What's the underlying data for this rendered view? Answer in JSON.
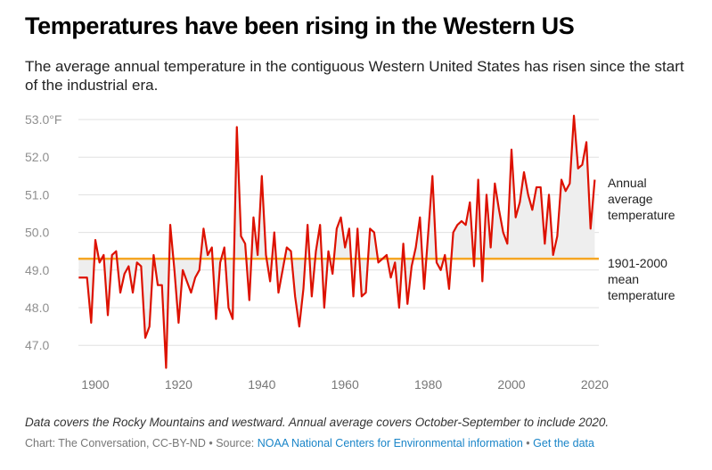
{
  "title": "Temperatures have been rising in the Western US",
  "subtitle": "The average annual temperature in the contiguous Western United States has risen since the start of the industrial era.",
  "note": "Data covers the Rocky Mountains and westward. Annual average covers October-September to include 2020.",
  "credit": {
    "prefix": "Chart: The Conversation, CC-BY-ND",
    "separator": " • ",
    "source_label": "Source: ",
    "source_link": "NOAA National Centers for Environmental information",
    "get_data": "Get the data"
  },
  "colors": {
    "line": "#dd1100",
    "mean": "#f5a623",
    "fill": "#eeeeee",
    "grid": "#e0e0e0"
  },
  "chart_data": {
    "type": "line",
    "title": "Temperatures have been rising in the Western US",
    "xlabel": "",
    "ylabel": "",
    "xlim": [
      1895,
      2021
    ],
    "ylim": [
      46.6,
      53.3
    ],
    "grid": true,
    "yticks": [
      {
        "value": 53.0,
        "label": "53.0°F"
      },
      {
        "value": 52.0,
        "label": "52.0"
      },
      {
        "value": 51.0,
        "label": "51.0"
      },
      {
        "value": 50.0,
        "label": "50.0"
      },
      {
        "value": 49.0,
        "label": "49.0"
      },
      {
        "value": 48.0,
        "label": "48.0"
      },
      {
        "value": 47.0,
        "label": "47.0"
      }
    ],
    "xticks": [
      {
        "value": 1900,
        "label": "1900"
      },
      {
        "value": 1920,
        "label": "1920"
      },
      {
        "value": 1940,
        "label": "1940"
      },
      {
        "value": 1960,
        "label": "1960"
      },
      {
        "value": 1980,
        "label": "1980"
      },
      {
        "value": 2000,
        "label": "2000"
      },
      {
        "value": 2020,
        "label": "2020"
      }
    ],
    "series": [
      {
        "name": "Annual average temperature",
        "label_lines": [
          "Annual",
          "average",
          "temperature"
        ],
        "x": [
          1896,
          1897,
          1898,
          1899,
          1900,
          1901,
          1902,
          1903,
          1904,
          1905,
          1906,
          1907,
          1908,
          1909,
          1910,
          1911,
          1912,
          1913,
          1914,
          1915,
          1916,
          1917,
          1918,
          1919,
          1920,
          1921,
          1922,
          1923,
          1924,
          1925,
          1926,
          1927,
          1928,
          1929,
          1930,
          1931,
          1932,
          1933,
          1934,
          1935,
          1936,
          1937,
          1938,
          1939,
          1940,
          1941,
          1942,
          1943,
          1944,
          1945,
          1946,
          1947,
          1948,
          1949,
          1950,
          1951,
          1952,
          1953,
          1954,
          1955,
          1956,
          1957,
          1958,
          1959,
          1960,
          1961,
          1962,
          1963,
          1964,
          1965,
          1966,
          1967,
          1968,
          1969,
          1970,
          1971,
          1972,
          1973,
          1974,
          1975,
          1976,
          1977,
          1978,
          1979,
          1980,
          1981,
          1982,
          1983,
          1984,
          1985,
          1986,
          1987,
          1988,
          1989,
          1990,
          1991,
          1992,
          1993,
          1994,
          1995,
          1996,
          1997,
          1998,
          1999,
          2000,
          2001,
          2002,
          2003,
          2004,
          2005,
          2006,
          2007,
          2008,
          2009,
          2010,
          2011,
          2012,
          2013,
          2014,
          2015,
          2016,
          2017,
          2018,
          2019,
          2020
        ],
        "values": [
          48.8,
          48.8,
          48.8,
          47.6,
          49.8,
          49.2,
          49.4,
          47.8,
          49.4,
          49.5,
          48.4,
          48.9,
          49.1,
          48.4,
          49.2,
          49.1,
          47.2,
          47.5,
          49.4,
          48.6,
          48.6,
          46.4,
          50.2,
          49.0,
          47.6,
          49.0,
          48.7,
          48.4,
          48.8,
          49.0,
          50.1,
          49.4,
          49.6,
          47.7,
          49.2,
          49.6,
          48.0,
          47.7,
          52.8,
          49.9,
          49.7,
          48.2,
          50.4,
          49.4,
          51.5,
          49.4,
          48.7,
          50.0,
          48.4,
          49.0,
          49.6,
          49.5,
          48.3,
          47.5,
          48.5,
          50.2,
          48.3,
          49.5,
          50.2,
          48.0,
          49.5,
          48.9,
          50.1,
          50.4,
          49.6,
          50.1,
          48.3,
          50.1,
          48.3,
          48.4,
          50.1,
          50.0,
          49.2,
          49.3,
          49.4,
          48.8,
          49.2,
          48.0,
          49.7,
          48.1,
          49.1,
          49.6,
          50.4,
          48.5,
          50.0,
          51.5,
          49.2,
          49.0,
          49.4,
          48.5,
          50.0,
          50.2,
          50.3,
          50.2,
          50.8,
          49.1,
          51.4,
          48.7,
          51.0,
          49.6,
          51.3,
          50.6,
          50.0,
          49.7,
          52.2,
          50.4,
          50.8,
          51.6,
          51.0,
          50.6,
          51.2,
          51.2,
          49.7,
          51.0,
          49.4,
          49.9,
          51.4,
          51.1,
          51.3,
          53.1,
          51.7,
          51.8,
          52.4,
          50.1,
          51.4
        ]
      },
      {
        "name": "1901-2000 mean temperature",
        "label_lines": [
          "1901-2000",
          "mean",
          "temperature"
        ],
        "values": [
          49.3
        ]
      }
    ]
  }
}
